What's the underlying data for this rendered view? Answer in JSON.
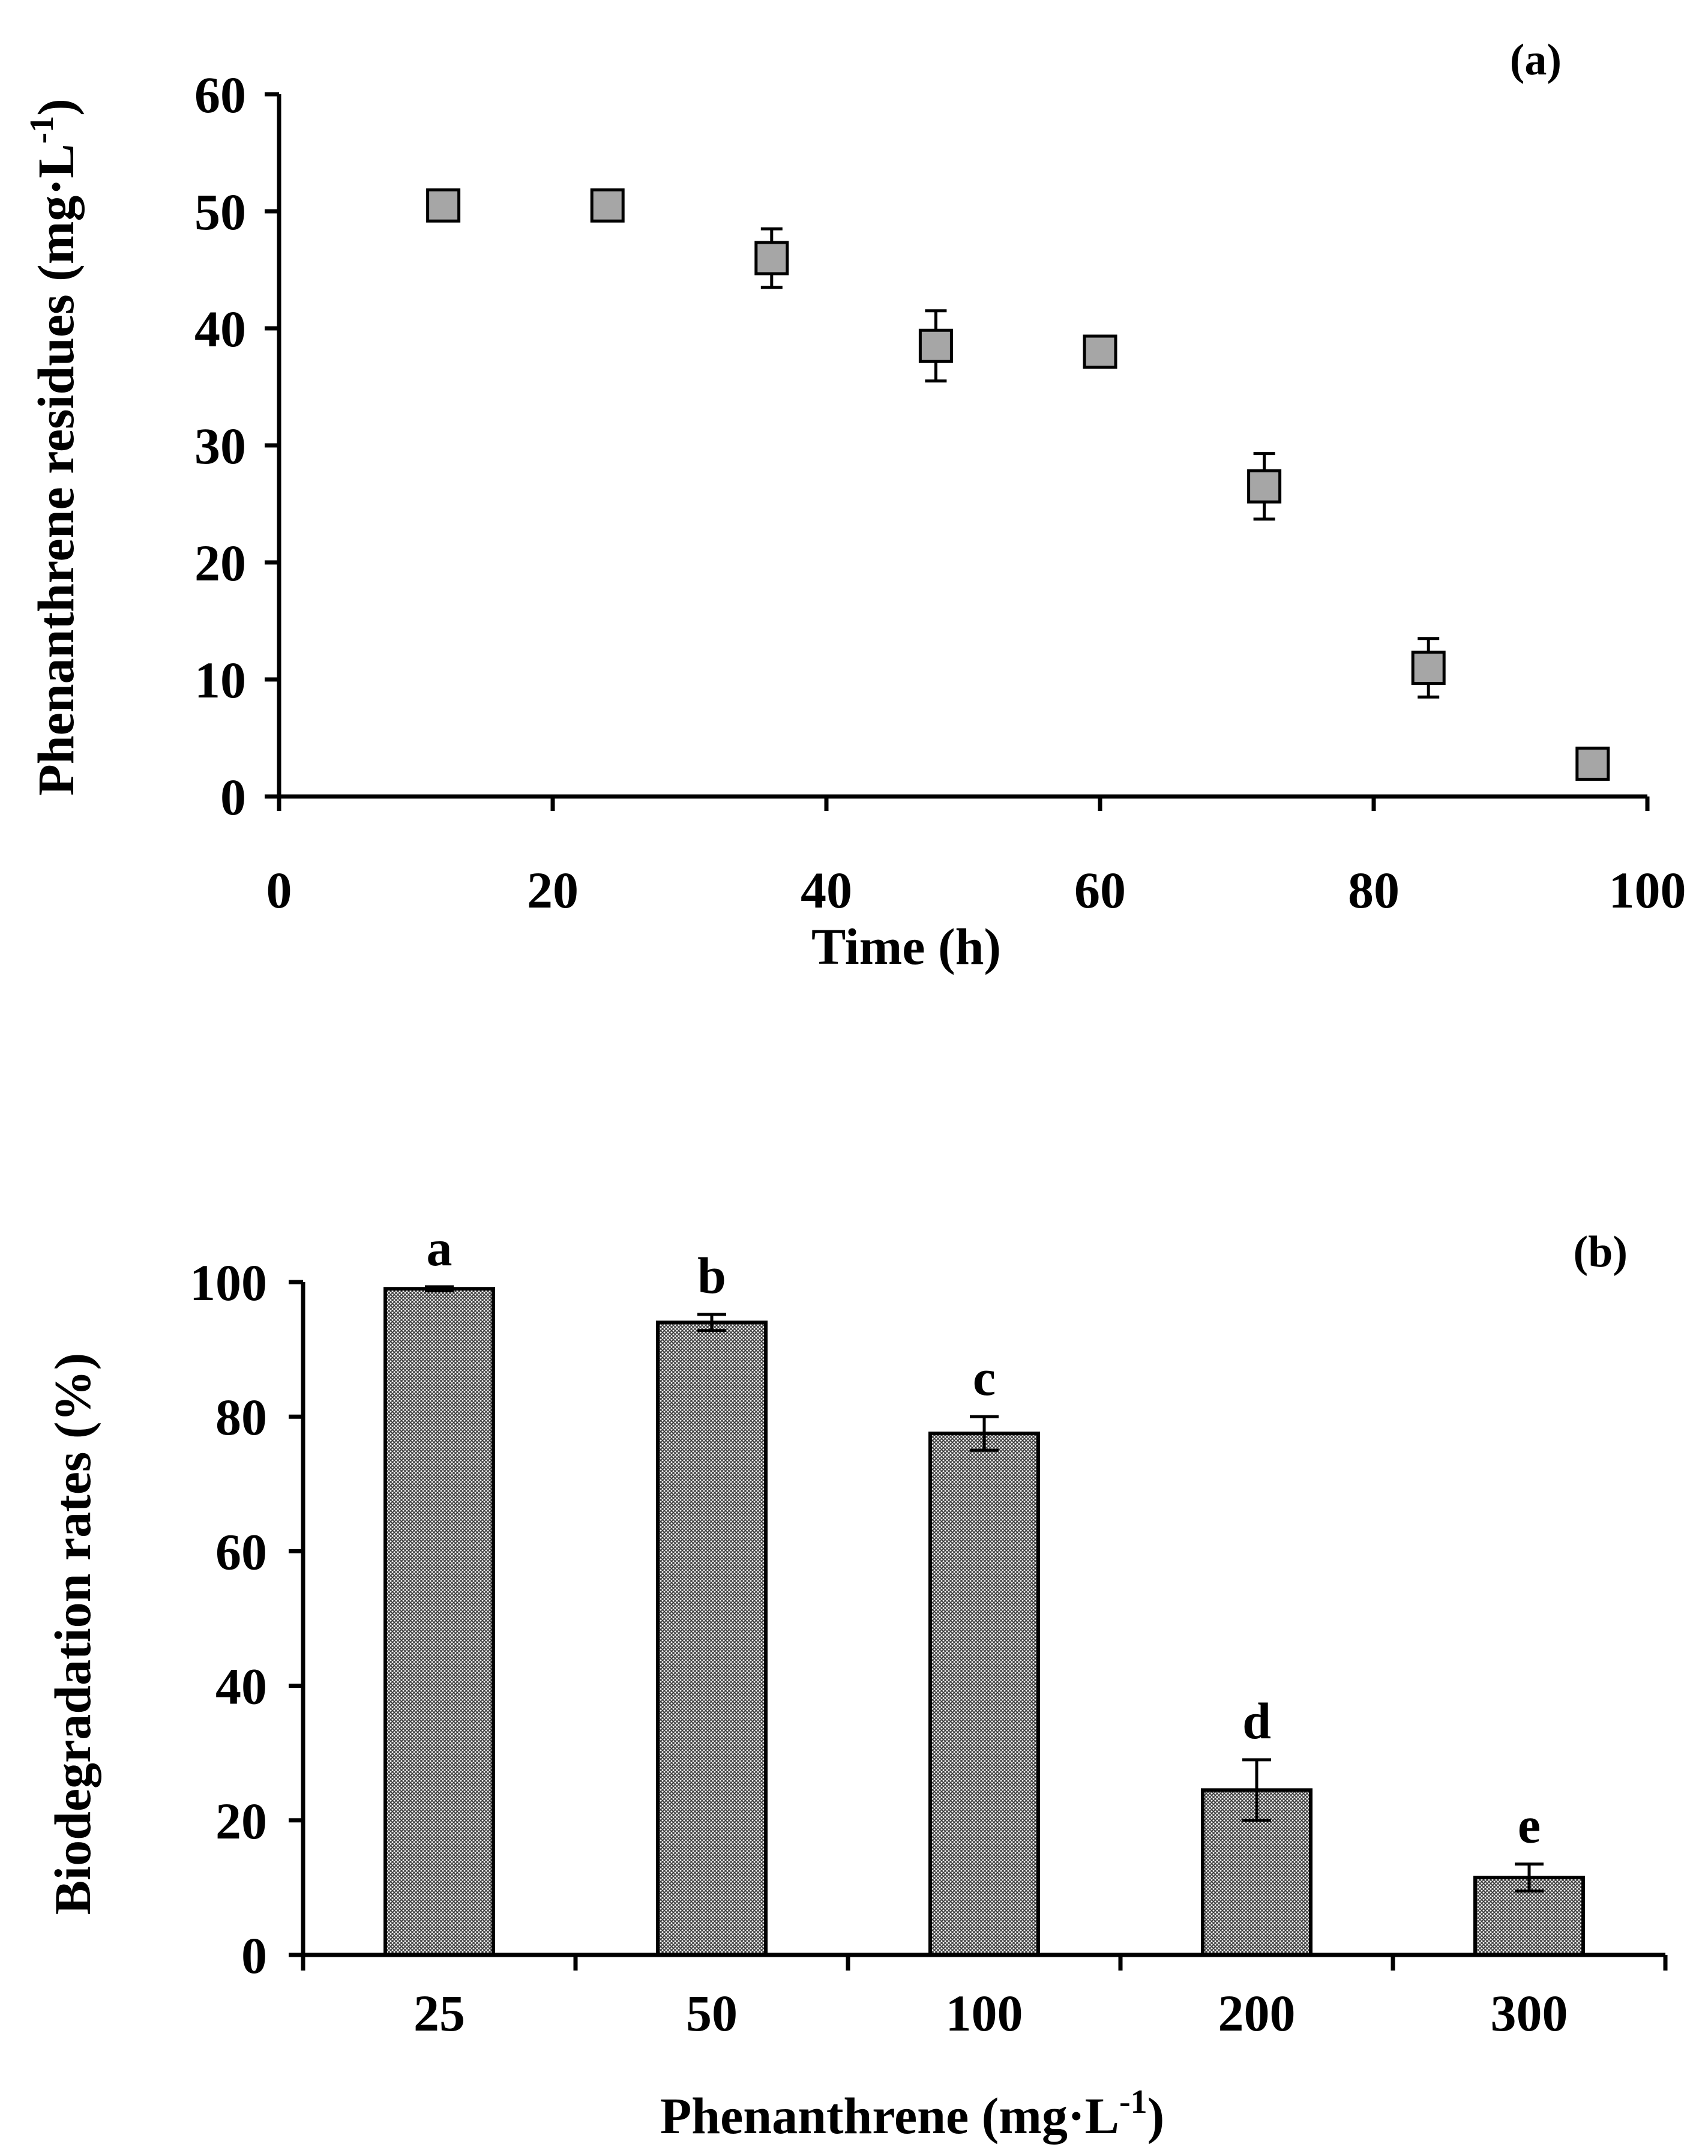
{
  "chart_data": [
    {
      "panel": "(a)",
      "type": "scatter",
      "title": "",
      "xlabel": "Time (h)",
      "ylabel": {
        "main": "Phenanthrene residues (mg·L",
        "sup": "-1",
        "close": ")"
      },
      "xlim": [
        0,
        100
      ],
      "ylim": [
        0,
        60
      ],
      "xticks": [
        "0",
        "20",
        "40",
        "60",
        "80",
        "100"
      ],
      "yticks": [
        "0",
        "10",
        "20",
        "30",
        "40",
        "50",
        "60"
      ],
      "grid": false,
      "marker": "square",
      "marker_color": "#a6a6a6",
      "series": [
        {
          "name": "Phenanthrene residues",
          "x": [
            12,
            24,
            36,
            48,
            60,
            72,
            84,
            96
          ],
          "y": [
            50.5,
            50.5,
            46.0,
            38.5,
            38.0,
            26.5,
            11.0,
            2.8
          ],
          "err": [
            0.8,
            0.3,
            2.5,
            3.0,
            0.3,
            2.8,
            2.5,
            1.0
          ]
        }
      ]
    },
    {
      "panel": "(b)",
      "type": "bar",
      "title": "",
      "xlabel": {
        "main": "Phenanthrene (mg·L",
        "sup": "-1",
        "close": ")"
      },
      "ylabel": "Biodegradation rates (%)",
      "ylim": [
        0,
        100
      ],
      "yticks": [
        "0",
        "20",
        "40",
        "60",
        "80",
        "100"
      ],
      "grid": false,
      "bar_pattern": "crosshatch",
      "categories": [
        "25",
        "50",
        "100",
        "200",
        "300"
      ],
      "values": [
        99.0,
        94.0,
        77.5,
        24.5,
        11.5
      ],
      "errors": [
        0.3,
        1.2,
        2.5,
        4.5,
        2.0
      ],
      "labels": [
        "a",
        "b",
        "c",
        "d",
        "e"
      ]
    }
  ]
}
